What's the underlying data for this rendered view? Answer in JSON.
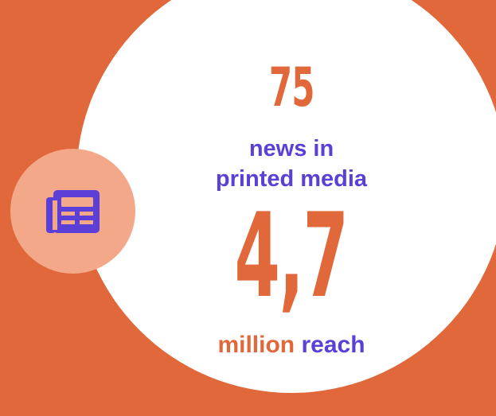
{
  "colors": {
    "background": "#E0683A",
    "circle": "#FFFFFF",
    "icon_circle": "#F3A989",
    "accent_orange": "#E0683A",
    "accent_purple": "#5B3FD6"
  },
  "icon": {
    "name": "newspaper-icon"
  },
  "stat1": {
    "value": "75",
    "label_line1": "news in",
    "label_line2": "printed media"
  },
  "stat2": {
    "value": "4,7",
    "label_word1": "million",
    "label_word2": "reach"
  }
}
